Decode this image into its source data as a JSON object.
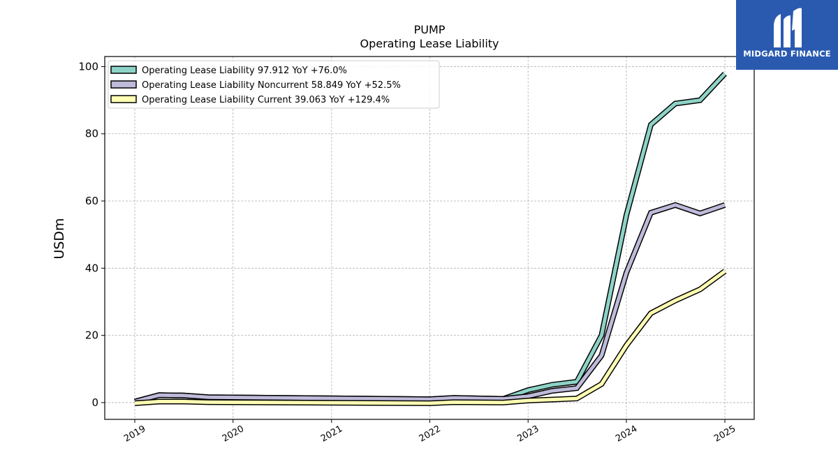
{
  "brand": {
    "name": "MIDGARD FINANCE",
    "color": "#2a5ab0"
  },
  "chart_data": {
    "type": "line",
    "title": "PUMP",
    "subtitle": "Operating Lease Liability",
    "ylabel": "USDm",
    "xlabel": "",
    "ylim": [
      -5,
      103
    ],
    "yticks": [
      0,
      20,
      40,
      60,
      80,
      100
    ],
    "xticks": [
      "2019",
      "2020",
      "2021",
      "2022",
      "2023",
      "2024",
      "2025"
    ],
    "grid": true,
    "legend_position": "top-left",
    "series": [
      {
        "name": "Operating Lease Liability",
        "legend_label": "Operating Lease Liability  97.912 YoY +76.0%",
        "color": "#8dd3c7",
        "points": [
          [
            "2019-01-01",
            0.3
          ],
          [
            "2019-04-01",
            2.2
          ],
          [
            "2019-07-01",
            2.1
          ],
          [
            "2019-10-01",
            1.6
          ],
          [
            "2022-01-01",
            1.0
          ],
          [
            "2022-04-01",
            1.4
          ],
          [
            "2022-10-01",
            1.1
          ],
          [
            "2023-01-01",
            3.7
          ],
          [
            "2023-04-01",
            5.3
          ],
          [
            "2023-07-01",
            6.2
          ],
          [
            "2023-10-01",
            20.0
          ],
          [
            "2024-01-01",
            55.7
          ],
          [
            "2024-04-01",
            82.7
          ],
          [
            "2024-07-01",
            89.0
          ],
          [
            "2024-10-01",
            90.0
          ],
          [
            "2025-01-01",
            97.9
          ]
        ]
      },
      {
        "name": "Operating Lease Liability Noncurrent",
        "legend_label": "Operating Lease Liability Noncurrent  58.849 YoY +52.5%",
        "color": "#bebada",
        "points": [
          [
            "2019-01-01",
            0.3
          ],
          [
            "2019-04-01",
            2.2
          ],
          [
            "2019-07-01",
            2.1
          ],
          [
            "2019-10-01",
            1.6
          ],
          [
            "2022-01-01",
            1.0
          ],
          [
            "2022-04-01",
            1.4
          ],
          [
            "2022-10-01",
            1.1
          ],
          [
            "2023-01-01",
            1.9
          ],
          [
            "2023-04-01",
            3.5
          ],
          [
            "2023-07-01",
            4.3
          ],
          [
            "2023-10-01",
            14.0
          ],
          [
            "2024-01-01",
            38.6
          ],
          [
            "2024-04-01",
            56.5
          ],
          [
            "2024-07-01",
            58.8
          ],
          [
            "2024-10-01",
            56.3
          ],
          [
            "2025-01-01",
            58.8
          ]
        ]
      },
      {
        "name": "Operating Lease Liability Current",
        "legend_label": "Operating Lease Liability Current  39.063 YoY +129.4%",
        "color": "#ffffb3",
        "points": [
          [
            "2019-01-01",
            -0.2
          ],
          [
            "2019-04-01",
            0.3
          ],
          [
            "2019-07-01",
            0.3
          ],
          [
            "2019-10-01",
            0.1
          ],
          [
            "2022-01-01",
            -0.2
          ],
          [
            "2022-04-01",
            0.1
          ],
          [
            "2022-10-01",
            0.0
          ],
          [
            "2023-01-01",
            0.6
          ],
          [
            "2023-04-01",
            0.9
          ],
          [
            "2023-07-01",
            1.2
          ],
          [
            "2023-10-01",
            5.5
          ],
          [
            "2024-01-01",
            17.0
          ],
          [
            "2024-04-01",
            26.6
          ],
          [
            "2024-07-01",
            30.4
          ],
          [
            "2024-10-01",
            33.7
          ],
          [
            "2025-01-01",
            39.1
          ]
        ]
      }
    ]
  }
}
